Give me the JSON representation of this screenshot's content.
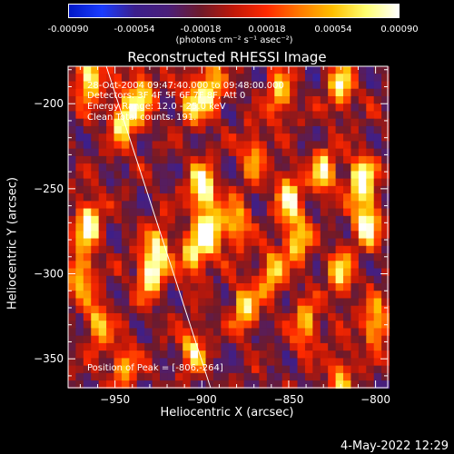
{
  "colorbar": {
    "ticks": [
      "-0.00090",
      "-0.00054",
      "-0.00018",
      "0.00018",
      "0.00054",
      "0.00090"
    ],
    "unit": "(photons cm⁻² s⁻¹ asec⁻²)",
    "colors": [
      "#0018c8",
      "#1a3cff",
      "#3b1f8c",
      "#4a1f7a",
      "#6e1a2a",
      "#c01808",
      "#ff2a00",
      "#ff7a00",
      "#ffc000",
      "#ffff70",
      "#ffffff"
    ]
  },
  "timestamp": "4-May-2022 12:29",
  "chart_data": {
    "type": "heatmap",
    "title": "Reconstructed RHESSI Image",
    "xlabel": "Heliocentric X (arcsec)",
    "ylabel": "Heliocentric Y (arcsec)",
    "xlim": [
      -977,
      -793
    ],
    "ylim": [
      -367,
      -178
    ],
    "x_ticks": [
      -950,
      -900,
      -850,
      -800
    ],
    "y_ticks": [
      -200,
      -250,
      -300,
      -350
    ],
    "value_range": [
      -0.0009,
      0.0009
    ],
    "annotations": [
      "28-Oct-2004 09:47:40.000 to 09:48:00.000",
      "Detectors: 3F 4F 5F 6F 7F 8F, Att 0",
      "Energy Range: 12.0 - 25.0 keV",
      "Clean    Total counts: 191.",
      "Position of Peak = [-806,-264]"
    ],
    "limb_line": [
      [
        -955,
        -178
      ],
      [
        -895,
        -367
      ]
    ],
    "peak": [
      -806,
      -264
    ],
    "bright_sources": [
      {
        "x": -965,
        "y": -185,
        "v": 0.0008
      },
      {
        "x": -945,
        "y": -210,
        "v": 0.0007
      },
      {
        "x": -935,
        "y": -195,
        "v": 0.0006
      },
      {
        "x": -905,
        "y": -200,
        "v": 0.0005
      },
      {
        "x": -895,
        "y": -190,
        "v": 0.0006
      },
      {
        "x": -855,
        "y": -195,
        "v": 0.0005
      },
      {
        "x": -820,
        "y": -190,
        "v": 0.0006
      },
      {
        "x": -965,
        "y": -270,
        "v": 0.0008
      },
      {
        "x": -970,
        "y": -300,
        "v": 0.0006
      },
      {
        "x": -960,
        "y": -330,
        "v": 0.0005
      },
      {
        "x": -930,
        "y": -300,
        "v": 0.0007
      },
      {
        "x": -925,
        "y": -285,
        "v": 0.0005
      },
      {
        "x": -900,
        "y": -250,
        "v": 0.0009
      },
      {
        "x": -895,
        "y": -275,
        "v": 0.0008
      },
      {
        "x": -905,
        "y": -290,
        "v": 0.0006
      },
      {
        "x": -880,
        "y": -270,
        "v": 0.0005
      },
      {
        "x": -850,
        "y": -255,
        "v": 0.0007
      },
      {
        "x": -845,
        "y": -280,
        "v": 0.0006
      },
      {
        "x": -830,
        "y": -240,
        "v": 0.0006
      },
      {
        "x": -808,
        "y": -245,
        "v": 0.0009
      },
      {
        "x": -805,
        "y": -270,
        "v": 0.0008
      },
      {
        "x": -820,
        "y": -300,
        "v": 0.0005
      },
      {
        "x": -860,
        "y": -300,
        "v": 0.0005
      },
      {
        "x": -875,
        "y": -320,
        "v": 0.0006
      },
      {
        "x": -840,
        "y": -330,
        "v": 0.0005
      },
      {
        "x": -800,
        "y": -330,
        "v": 0.0006
      },
      {
        "x": -905,
        "y": -345,
        "v": 0.0005
      },
      {
        "x": -945,
        "y": -355,
        "v": 0.0004
      },
      {
        "x": -820,
        "y": -360,
        "v": 0.0004
      },
      {
        "x": -870,
        "y": -230,
        "v": 0.0004
      }
    ]
  }
}
